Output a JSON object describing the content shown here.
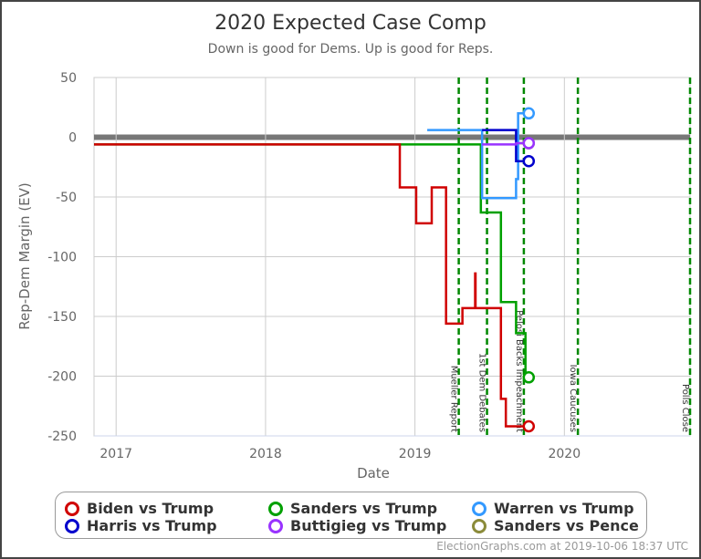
{
  "chart_data": {
    "type": "line",
    "title": "2020 Expected Case Comp",
    "subtitle": "Down is good for Dems. Up is good for Reps.",
    "xlabel": "Date",
    "ylabel": "Rep-Dem Margin (EV)",
    "xlim": [
      "2016-11-08",
      "2020-11-03"
    ],
    "ylim": [
      -250,
      50
    ],
    "yticks": [
      50,
      0,
      -50,
      -100,
      -150,
      -200,
      -250
    ],
    "xticks": [
      {
        "date": "2017-01-01",
        "label": "2017"
      },
      {
        "date": "2018-01-01",
        "label": "2018"
      },
      {
        "date": "2019-01-01",
        "label": "2019"
      },
      {
        "date": "2020-01-01",
        "label": "2020"
      }
    ],
    "grid": true,
    "legend_position": "bottom",
    "events": [
      {
        "date": "2019-04-18",
        "label": "Mueller Report"
      },
      {
        "date": "2019-06-26",
        "label": "1st Dem Debates"
      },
      {
        "date": "2019-09-24",
        "label": "Pelosi Backs Impeachment"
      },
      {
        "date": "2020-02-03",
        "label": "Iowa Caucuses"
      },
      {
        "date": "2020-11-03",
        "label": "Polls Close"
      }
    ],
    "series": [
      {
        "name": "Sanders vs Pence",
        "color": "#8b8b3a",
        "points": [
          [
            "2019-09-05",
            -5
          ],
          [
            "2019-10-06",
            -5
          ]
        ]
      },
      {
        "name": "Sanders vs Trump",
        "color": "#00a000",
        "points": [
          [
            "2016-11-08",
            -6
          ],
          [
            "2019-06-11",
            -63
          ],
          [
            "2019-07-30",
            -138
          ],
          [
            "2019-09-05",
            -164
          ],
          [
            "2019-09-28",
            -201
          ],
          [
            "2019-10-06",
            -201
          ]
        ]
      },
      {
        "name": "Biden vs Trump",
        "color": "#d00000",
        "points": [
          [
            "2016-11-08",
            -6
          ],
          [
            "2018-11-25",
            -42
          ],
          [
            "2019-01-04",
            -72
          ],
          [
            "2019-02-11",
            -42
          ],
          [
            "2019-03-18",
            -156
          ],
          [
            "2019-04-27",
            -143
          ],
          [
            "2019-05-28",
            -114
          ],
          [
            "2019-05-29",
            -143
          ],
          [
            "2019-07-30",
            -219
          ],
          [
            "2019-08-11",
            -242
          ],
          [
            "2019-10-06",
            -242
          ]
        ]
      },
      {
        "name": "Warren vs Trump",
        "color": "#3399ff",
        "points": [
          [
            "2019-01-31",
            6
          ],
          [
            "2019-06-14",
            -51
          ],
          [
            "2019-09-05",
            -35
          ],
          [
            "2019-09-10",
            20
          ],
          [
            "2019-10-06",
            20
          ]
        ]
      },
      {
        "name": "Harris vs Trump",
        "color": "#0000cc",
        "points": [
          [
            "2019-06-14",
            6
          ],
          [
            "2019-09-05",
            -20
          ],
          [
            "2019-10-06",
            -20
          ]
        ]
      },
      {
        "name": "Buttigieg vs Trump",
        "color": "#9933ff",
        "points": [
          [
            "2019-06-14",
            -6
          ],
          [
            "2019-09-05",
            -5
          ],
          [
            "2019-10-06",
            -5
          ]
        ]
      }
    ],
    "legend_order": [
      "Biden vs Trump",
      "Sanders vs Trump",
      "Warren vs Trump",
      "Harris vs Trump",
      "Buttigieg vs Trump",
      "Sanders vs Pence"
    ]
  },
  "footer": "ElectionGraphs.com at 2019-10-06 18:37 UTC"
}
